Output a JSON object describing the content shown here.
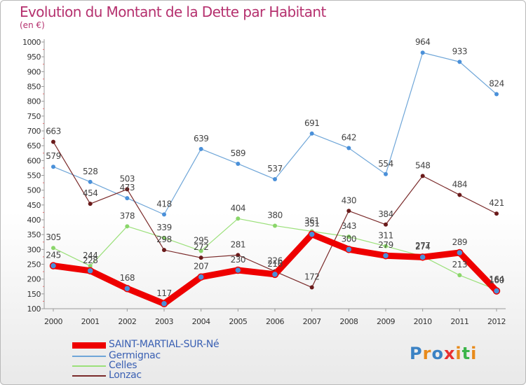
{
  "header": {
    "title": "Evolution du Montant de la Dette par Habitant",
    "subtitle": "(en €)"
  },
  "logo": {
    "text": "Proxiti",
    "colors": [
      "#3b82c4",
      "#e88a1a",
      "#3b82c4",
      "#e83030",
      "#e88a1a",
      "#3bb54a",
      "#e88a1a"
    ]
  },
  "chart_data": {
    "type": "line",
    "x": [
      2000,
      2001,
      2002,
      2003,
      2004,
      2005,
      2006,
      2007,
      2008,
      2009,
      2010,
      2011,
      2012
    ],
    "ylim": [
      100,
      1000
    ],
    "yticks": [
      100,
      150,
      200,
      250,
      300,
      350,
      400,
      450,
      500,
      550,
      600,
      650,
      700,
      750,
      800,
      850,
      900,
      950,
      1000
    ],
    "grid": false,
    "legend_position": "bottom-left",
    "series": [
      {
        "name": "SAINT-MARTIAL-SUR-Né",
        "color": "#ee0000",
        "marker": "#4a90d9",
        "emphasis": true,
        "values": [
          245,
          228,
          168,
          117,
          207,
          230,
          216,
          351,
          300,
          279,
          274,
          289,
          160
        ]
      },
      {
        "name": "Germignac",
        "color": "#6fa6d8",
        "marker": "#4a90d9",
        "emphasis": false,
        "values": [
          579,
          528,
          473,
          418,
          639,
          589,
          537,
          691,
          642,
          554,
          964,
          933,
          824
        ]
      },
      {
        "name": "Celles",
        "color": "#9be07a",
        "marker": "#8ad66a",
        "emphasis": false,
        "values": [
          305,
          244,
          378,
          339,
          295,
          404,
          380,
          361,
          343,
          311,
          277,
          213,
          164
        ]
      },
      {
        "name": "Lonzac",
        "color": "#7a2a2a",
        "marker": "#6a1a1a",
        "emphasis": false,
        "values": [
          663,
          454,
          503,
          298,
          272,
          281,
          226,
          172,
          430,
          384,
          548,
          484,
          421
        ]
      }
    ]
  }
}
